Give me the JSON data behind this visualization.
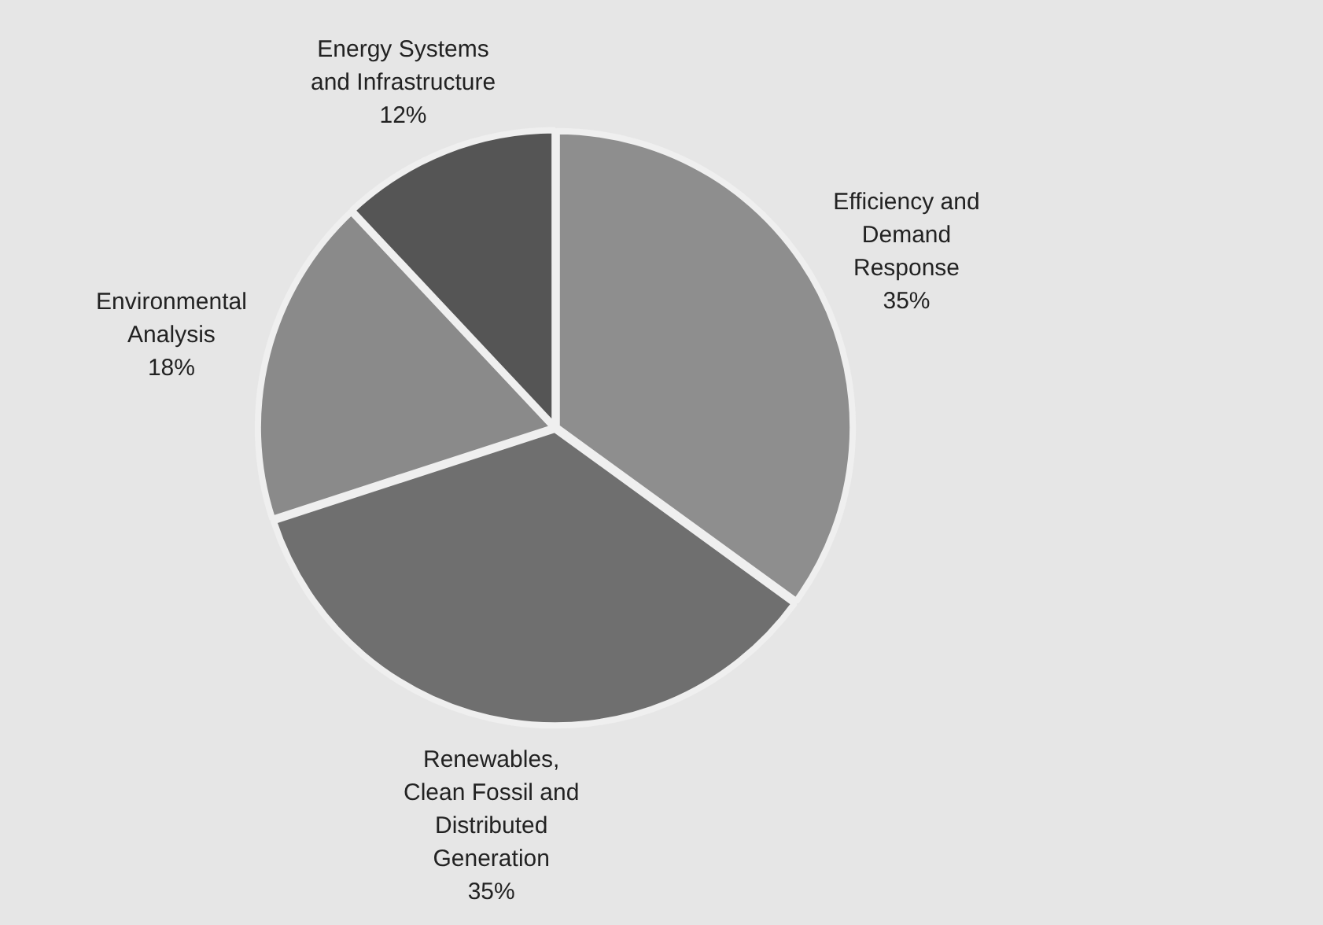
{
  "chart_data": {
    "type": "pie",
    "categories": [
      "Efficiency and Demand Response",
      "Renewables, Clean Fossil and Distributed Generation",
      "Environmental Analysis",
      "Energy Systems and Infrastructure"
    ],
    "values": [
      35,
      35,
      18,
      12
    ],
    "value_labels": [
      "35%",
      "35%",
      "18%",
      "12%"
    ],
    "colors": [
      "#8e8e8e",
      "#6f6f6f",
      "#8a8a8a",
      "#555555"
    ],
    "legend": false
  }
}
